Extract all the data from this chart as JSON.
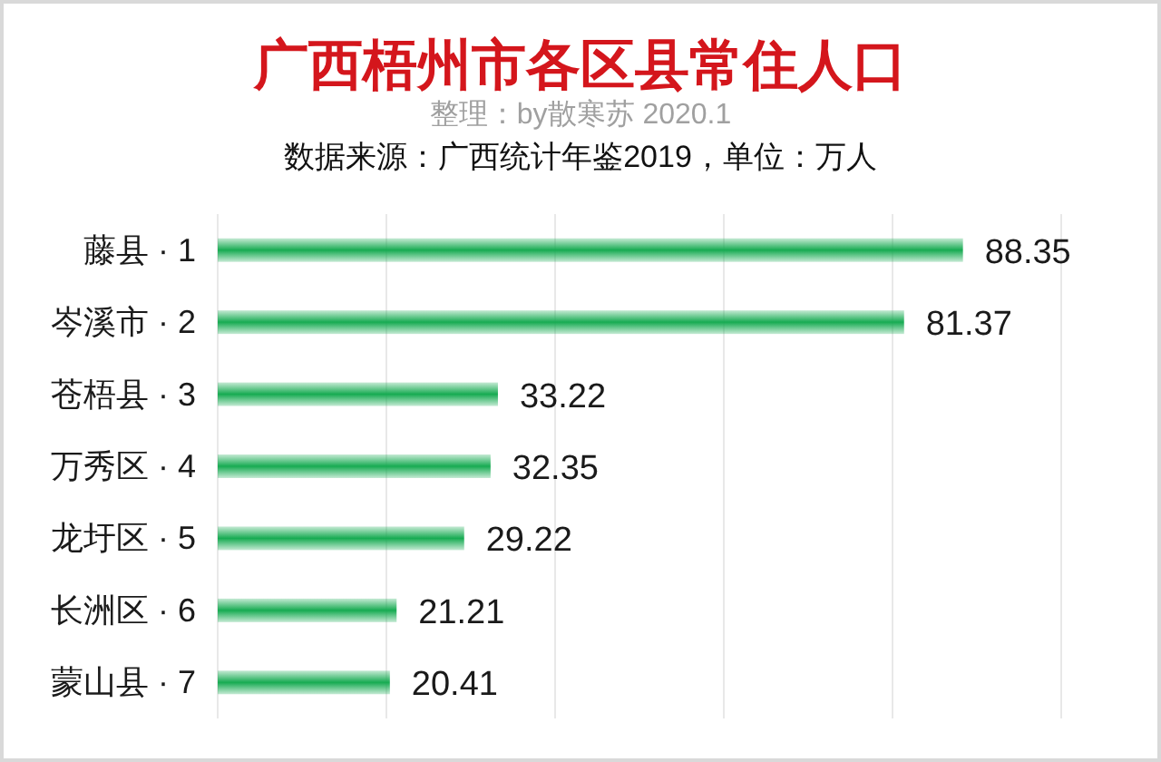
{
  "chart_data": {
    "type": "bar",
    "orientation": "horizontal",
    "title": "广西梧州市各区县常住人口",
    "subtitle": "整理：by散寒苏 2020.1",
    "annotations": [
      "数据来源：广西统计年鉴2019，单位：万人"
    ],
    "categories": [
      "藤县 · 1",
      "岑溪市 · 2",
      "苍梧县 · 3",
      "万秀区 · 4",
      "龙圩区 · 5",
      "长洲区 · 6",
      "蒙山县 · 7"
    ],
    "values": [
      88.35,
      81.37,
      33.22,
      32.35,
      29.22,
      21.21,
      20.41
    ],
    "color": "#17ab52",
    "data_labels": true,
    "xlim": [
      0,
      100
    ],
    "xticks": [
      {
        "value": 0,
        "label": null
      },
      {
        "value": 20,
        "label": null
      },
      {
        "value": 40,
        "label": null
      },
      {
        "value": 60,
        "label": null
      },
      {
        "value": 80,
        "label": null
      },
      {
        "value": 100,
        "label": null
      }
    ],
    "grid": "x",
    "tick_labels": "y"
  }
}
